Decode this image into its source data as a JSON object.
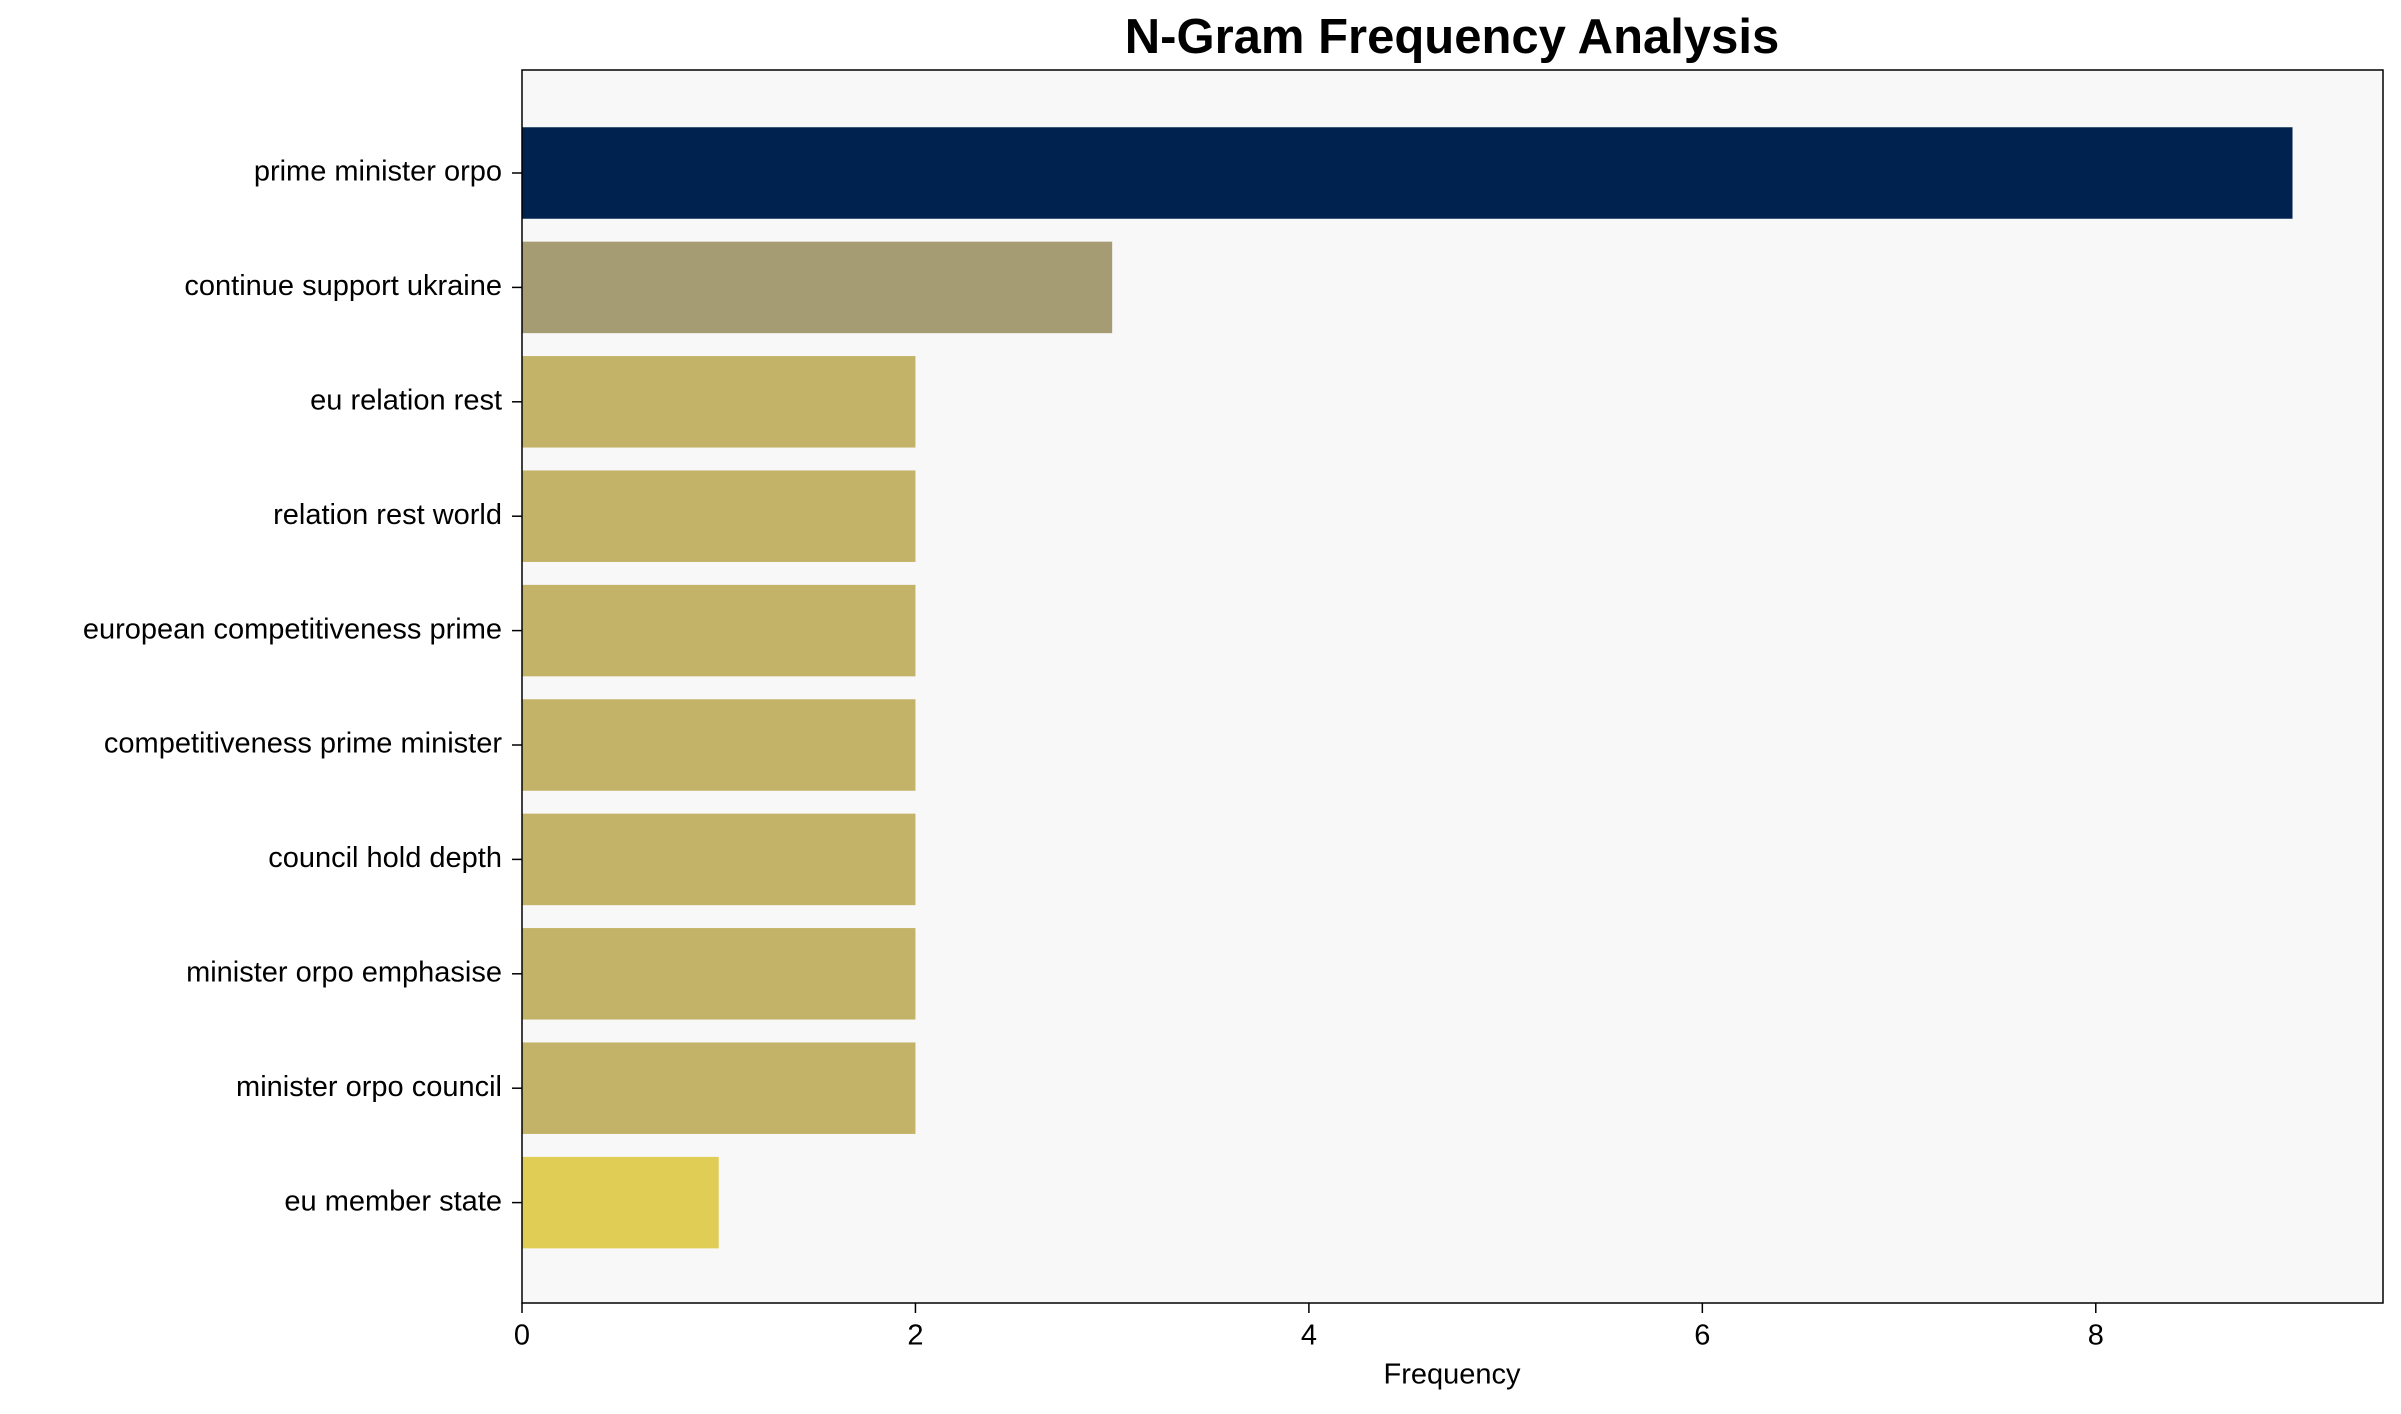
{
  "chart_data": {
    "type": "bar",
    "orientation": "horizontal",
    "title": "N-Gram Frequency Analysis",
    "x_label": "Frequency",
    "categories": [
      "prime minister orpo",
      "continue support ukraine",
      "eu relation rest",
      "relation rest world",
      "european competitiveness prime",
      "competitiveness prime minister",
      "council hold depth",
      "minister orpo emphasise",
      "minister orpo council",
      "eu member state"
    ],
    "values": [
      9,
      3,
      2,
      2,
      2,
      2,
      2,
      2,
      2,
      1
    ],
    "colors": [
      "#00224e",
      "#a59c74",
      "#c3b369",
      "#c3b369",
      "#c3b369",
      "#c3b369",
      "#c3b369",
      "#c3b369",
      "#c3b369",
      "#e0cd56"
    ],
    "xlim": [
      0,
      9.46
    ],
    "xticks": [
      0,
      2,
      4,
      6,
      8
    ],
    "grid": false
  }
}
